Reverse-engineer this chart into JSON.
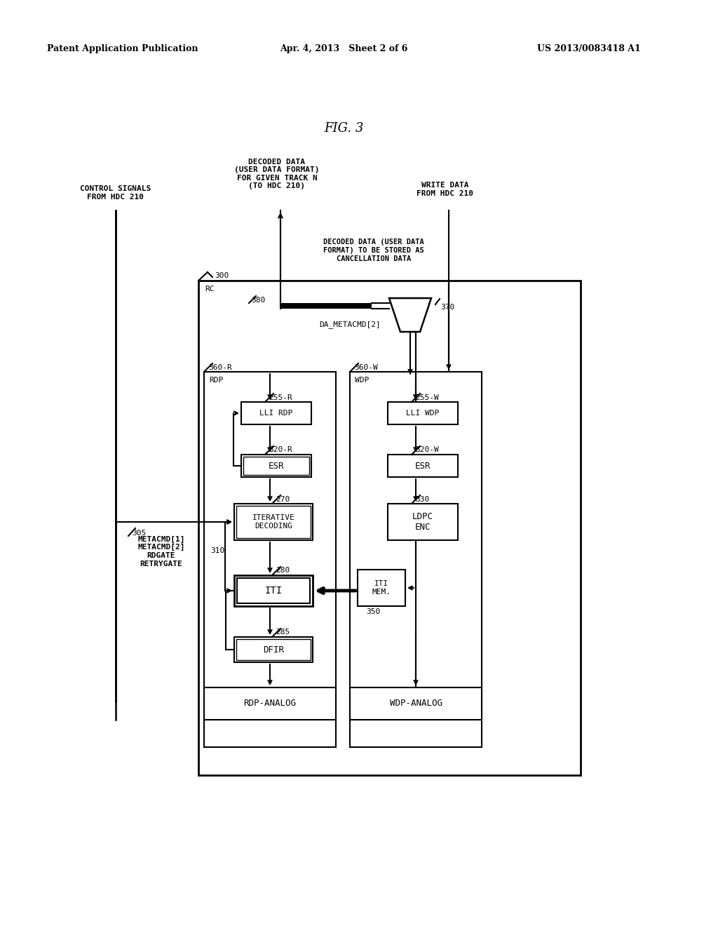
{
  "header_left": "Patent Application Publication",
  "header_mid": "Apr. 4, 2013   Sheet 2 of 6",
  "header_right": "US 2013/0083418 A1",
  "fig_title": "FIG. 3",
  "bg_color": "#ffffff",
  "label_top_left": "CONTROL SIGNALS\nFROM HDC 210",
  "label_top_mid": "DECODED DATA\n(USER DATA FORMAT)\nFOR GIVEN TRACK N\n(TO HDC 210)",
  "label_top_right": "WRITE DATA\nFROM HDC 210",
  "label_cancel": "DECODED DATA (USER DATA\nFORMAT) TO BE STORED AS\nCANCELLATION DATA",
  "label_300": "300",
  "label_RC": "RC",
  "label_380": "380",
  "label_370": "370",
  "label_DA_METACMD": "DA_METACMD[2]",
  "label_360R": "360-R",
  "label_360W": "360-W",
  "label_RDP": "RDP",
  "label_WDP": "WDP",
  "label_255R": "255-R",
  "label_255W": "255-W",
  "label_LLI_RDP": "LLI RDP",
  "label_LLI_WDP": "LLI WDP",
  "label_320R": "320-R",
  "label_320W": "320-W",
  "label_ESR_R": "ESR",
  "label_ESR_W": "ESR",
  "label_270": "270",
  "label_330": "330",
  "label_ITER": "ITERATIVE\nDECODING",
  "label_LDPC": "LDPC\nENC",
  "label_305": "305",
  "label_310": "310",
  "label_metacmd": "METACMD[1]\nMETACMD[2]\nRDGATE\nRETRYGATE",
  "label_280": "280",
  "label_ITI": "ITI",
  "label_ITI_MEM": "ITI\nMEM.",
  "label_350": "350",
  "label_285": "285",
  "label_DFIR": "DFIR",
  "label_RDP_ANALOG": "RDP-ANALOG",
  "label_WDP_ANALOG": "WDP-ANALOG"
}
